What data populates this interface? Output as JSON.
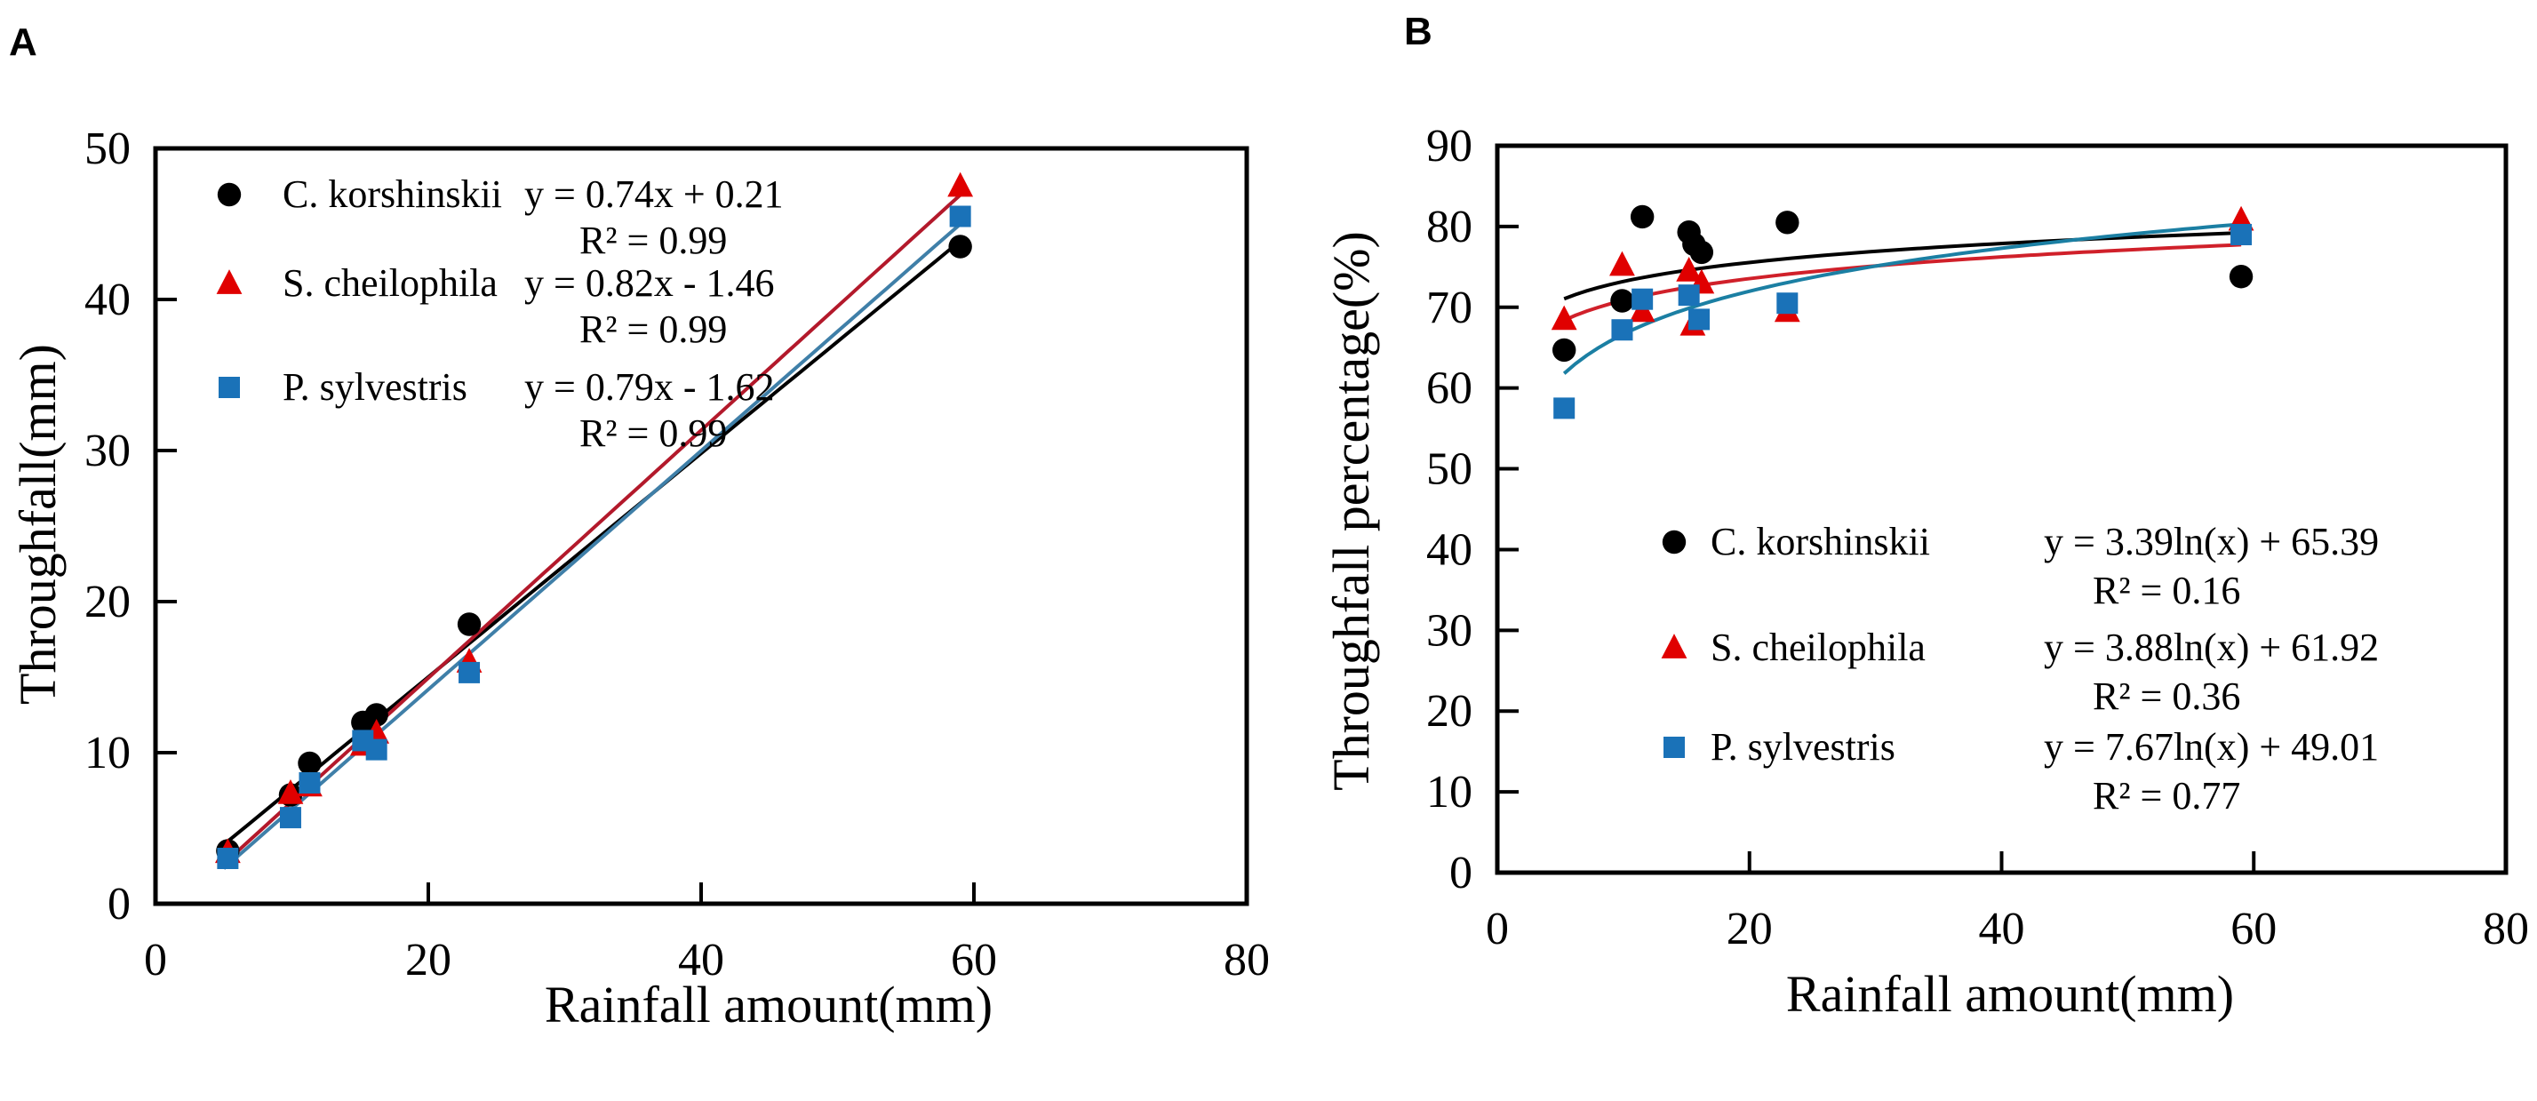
{
  "chart_data": [
    {
      "panel_label": "A",
      "type": "scatter",
      "xlabel": "Rainfall amount(mm)",
      "ylabel": "Throughfall(mm)",
      "xlim": [
        0,
        80
      ],
      "ylim": [
        0,
        50
      ],
      "xticks": [
        "0",
        "20",
        "40",
        "60",
        "80"
      ],
      "yticks": [
        "0",
        "10",
        "20",
        "30",
        "40",
        "50"
      ],
      "grid": false,
      "legend_position": "top-left",
      "series": [
        {
          "name": "C. korshinskii",
          "marker": "circle",
          "color": "#000000",
          "line_color": "#000000",
          "fit": {
            "type": "linear",
            "a": 0.74,
            "b": 0.21
          },
          "equation": "y = 0.74x + 0.21",
          "r2": "R² = 0.99",
          "points": [
            [
              5.3,
              3.5
            ],
            [
              9.9,
              7.2
            ],
            [
              11.3,
              9.3
            ],
            [
              15.2,
              12.0
            ],
            [
              16.2,
              12.5
            ],
            [
              23,
              18.5
            ],
            [
              59,
              43.5
            ]
          ]
        },
        {
          "name": "S. cheilophila",
          "marker": "triangle",
          "color": "#e00000",
          "line_color": "#b3192b",
          "fit": {
            "type": "linear",
            "a": 0.82,
            "b": -1.46
          },
          "equation": "y = 0.82x - 1.46",
          "r2": "R² = 0.99",
          "points": [
            [
              5.3,
              3.4
            ],
            [
              9.9,
              7.3
            ],
            [
              11.3,
              7.8
            ],
            [
              15.2,
              10.5
            ],
            [
              16.2,
              11.3
            ],
            [
              23,
              16.0
            ],
            [
              59,
              47.5
            ]
          ]
        },
        {
          "name": "P. sylvestris",
          "marker": "square",
          "color": "#1a72b8",
          "line_color": "#3f7fa8",
          "fit": {
            "type": "linear",
            "a": 0.79,
            "b": -1.62
          },
          "equation": "y = 0.79x - 1.62",
          "r2": "R² = 0.99",
          "points": [
            [
              5.3,
              3.0
            ],
            [
              9.9,
              5.7
            ],
            [
              11.3,
              8.0
            ],
            [
              15.2,
              10.8
            ],
            [
              16.2,
              10.2
            ],
            [
              23,
              15.3
            ],
            [
              59,
              45.5
            ]
          ]
        }
      ]
    },
    {
      "panel_label": "B",
      "type": "scatter",
      "xlabel": "Rainfall amount(mm)",
      "ylabel": "Throughfall percentage(%)",
      "xlim": [
        0,
        80
      ],
      "ylim": [
        0,
        90
      ],
      "xticks": [
        "0",
        "20",
        "40",
        "60",
        "80"
      ],
      "yticks": [
        "0",
        "10",
        "20",
        "30",
        "40",
        "50",
        "60",
        "70",
        "80",
        "90"
      ],
      "grid": false,
      "legend_position": "bottom-right",
      "series": [
        {
          "name": "C. korshinskii",
          "marker": "circle",
          "color": "#000000",
          "line_color": "#000000",
          "fit": {
            "type": "log",
            "a": 3.39,
            "b": 65.39
          },
          "equation": "y = 3.39ln(x) + 65.39",
          "r2": "R² = 0.16",
          "points": [
            [
              5.3,
              64.7
            ],
            [
              9.9,
              70.8
            ],
            [
              11.5,
              81.2
            ],
            [
              15.2,
              79.3
            ],
            [
              15.6,
              77.8
            ],
            [
              16.2,
              76.8
            ],
            [
              23,
              80.5
            ],
            [
              59,
              73.8
            ]
          ]
        },
        {
          "name": "S. cheilophila",
          "marker": "triangle",
          "color": "#e00000",
          "line_color": "#d0202a",
          "fit": {
            "type": "log",
            "a": 3.88,
            "b": 61.92
          },
          "equation": "y = 3.88ln(x) + 61.92",
          "r2": "R² = 0.36",
          "points": [
            [
              5.3,
              68.5
            ],
            [
              9.9,
              75.2
            ],
            [
              11.5,
              69.5
            ],
            [
              15.2,
              74.5
            ],
            [
              15.5,
              67.8
            ],
            [
              16.2,
              73.0
            ],
            [
              23,
              69.5
            ],
            [
              59,
              80.8
            ]
          ]
        },
        {
          "name": "P. sylvestris",
          "marker": "square",
          "color": "#1a72b8",
          "line_color": "#1b7fa3",
          "fit": {
            "type": "log",
            "a": 7.67,
            "b": 49.01
          },
          "equation": "y = 7.67ln(x) + 49.01",
          "r2": "R² = 0.77",
          "points": [
            [
              5.3,
              57.5
            ],
            [
              9.9,
              67.2
            ],
            [
              11.5,
              71.0
            ],
            [
              15.2,
              71.5
            ],
            [
              16.0,
              68.5
            ],
            [
              23,
              70.5
            ],
            [
              59,
              79.0
            ]
          ]
        }
      ]
    }
  ]
}
